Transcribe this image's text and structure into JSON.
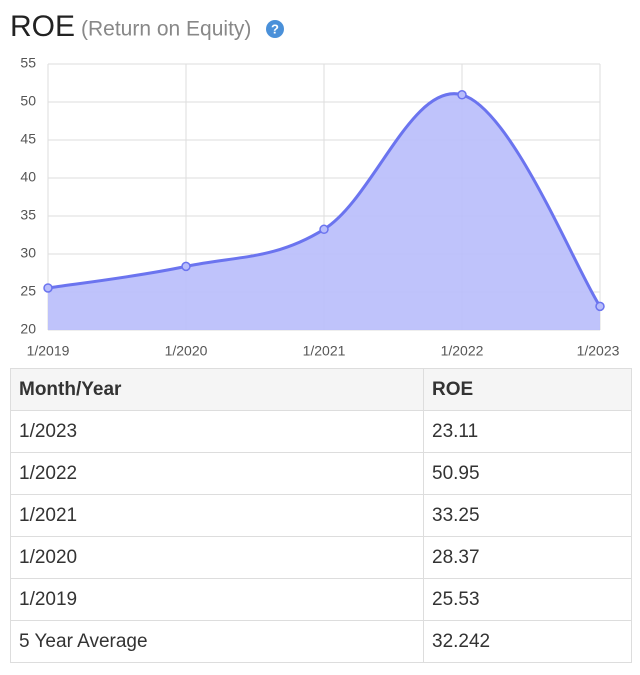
{
  "header": {
    "title": "ROE",
    "subtitle": "(Return on Equity)",
    "help_icon": "?"
  },
  "chart_data": {
    "type": "area",
    "categories": [
      "1/2019",
      "1/2020",
      "1/2021",
      "1/2022",
      "1/2023"
    ],
    "values": [
      25.53,
      28.37,
      33.25,
      50.95,
      23.11
    ],
    "color": "#6b74ef",
    "fill": "#b8bdfb",
    "ylim": [
      20,
      55
    ],
    "yticks": [
      20,
      25,
      30,
      35,
      40,
      45,
      50,
      55
    ],
    "grid": true
  },
  "table": {
    "columns": [
      "Month/Year",
      "ROE"
    ],
    "rows": [
      [
        "1/2023",
        "23.11"
      ],
      [
        "1/2022",
        "50.95"
      ],
      [
        "1/2021",
        "33.25"
      ],
      [
        "1/2020",
        "28.37"
      ],
      [
        "1/2019",
        "25.53"
      ],
      [
        "5 Year Average",
        "32.242"
      ]
    ]
  }
}
